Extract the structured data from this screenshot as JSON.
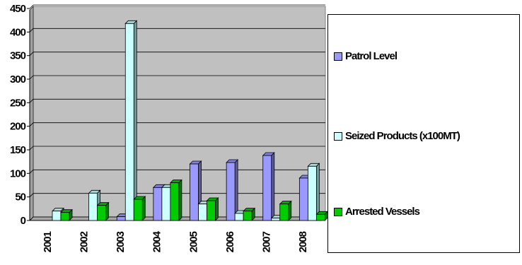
{
  "chart_data": {
    "type": "bar",
    "categories": [
      "2001",
      "2002",
      "2003",
      "2004",
      "2005",
      "2006",
      "2007",
      "2008"
    ],
    "series": [
      {
        "name": "Patrol Level",
        "color": "#9999ff",
        "values": [
          0,
          0,
          8,
          70,
          120,
          123,
          138,
          90
        ]
      },
      {
        "name": "Seized Products (x100MT)",
        "color": "#ccffff",
        "values": [
          20,
          58,
          418,
          70,
          35,
          15,
          5,
          115
        ]
      },
      {
        "name": "Arrested Vessels",
        "color": "#00cc00",
        "values": [
          17,
          32,
          45,
          80,
          42,
          20,
          35,
          13
        ]
      }
    ],
    "yticks": [
      "0",
      "50",
      "100",
      "150",
      "200",
      "250",
      "300",
      "350",
      "400",
      "450"
    ],
    "ylim": [
      0,
      450
    ],
    "grid": true,
    "legend_position": "right",
    "plot_background": "#c0c0c0"
  }
}
